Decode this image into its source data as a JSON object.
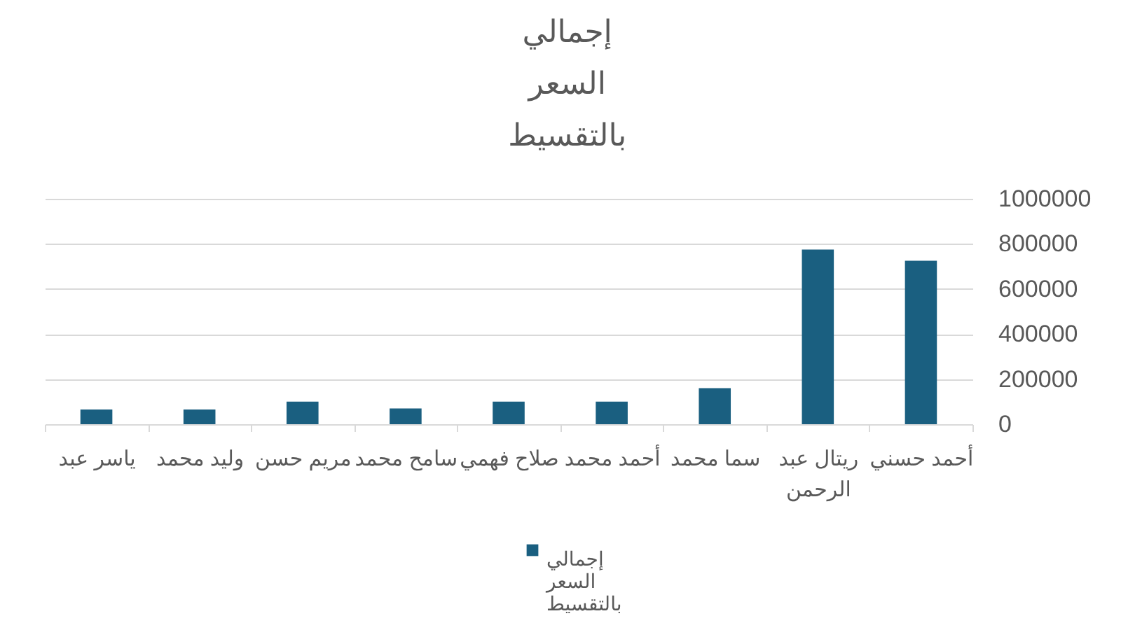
{
  "chart_data": {
    "type": "bar",
    "title": "إجمالي السعر بالتقسيط",
    "categories": [
      "ياسر عبد",
      "وليد محمد",
      "مريم حسن",
      "سامح محمد",
      "صلاح فهمي",
      "أحمد محمد",
      "سما محمد",
      "ريتال عبد الرحمن",
      "أحمد حسني"
    ],
    "series": [
      {
        "name": "إجمالي السعر بالتقسيط",
        "color": "#1a5f80",
        "values": [
          65000,
          65000,
          100000,
          70000,
          100000,
          100000,
          160000,
          775000,
          725000
        ]
      }
    ],
    "ylim": [
      0,
      1000000
    ],
    "yticks": [
      0,
      200000,
      400000,
      600000,
      800000,
      1000000
    ],
    "grid": "y",
    "legend": "bottom"
  }
}
